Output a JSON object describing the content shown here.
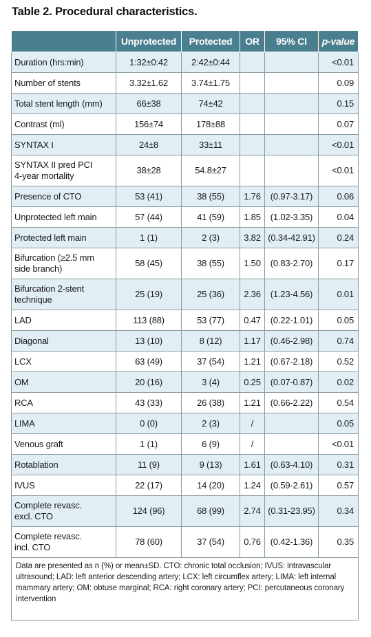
{
  "title": "Table 2. Procedural characteristics.",
  "headers": [
    "",
    "Unprotected",
    "Protected",
    "OR",
    "95% CI",
    "p-value"
  ],
  "rows": [
    {
      "label": [
        "Duration (hrs:min)"
      ],
      "unprotected": "1:32±0:42",
      "protected": "2:42±0:44",
      "or": "",
      "ci": "",
      "p": "<0.01"
    },
    {
      "label": [
        "Number of stents"
      ],
      "unprotected": "3.32±1.62",
      "protected": "3.74±1.75",
      "or": "",
      "ci": "",
      "p": "0.09"
    },
    {
      "label": [
        "Total stent length (mm)"
      ],
      "unprotected": "66±38",
      "protected": "74±42",
      "or": "",
      "ci": "",
      "p": "0.15"
    },
    {
      "label": [
        "Contrast (ml)"
      ],
      "unprotected": "156±74",
      "protected": "178±88",
      "or": "",
      "ci": "",
      "p": "0.07"
    },
    {
      "label": [
        "SYNTAX I"
      ],
      "unprotected": "24±8",
      "protected": "33±11",
      "or": "",
      "ci": "",
      "p": "<0.01"
    },
    {
      "label": [
        "SYNTAX II pred PCI",
        "4-year mortality"
      ],
      "unprotected": "38±28",
      "protected": "54.8±27",
      "or": "",
      "ci": "",
      "p": "<0.01"
    },
    {
      "label": [
        "Presence of CTO"
      ],
      "unprotected": "53 (41)",
      "protected": "38 (55)",
      "or": "1.76",
      "ci": "(0.97-3.17)",
      "p": "0.06"
    },
    {
      "label": [
        "Unprotected left main"
      ],
      "unprotected": "57 (44)",
      "protected": "41 (59)",
      "or": "1.85",
      "ci": "(1.02-3.35)",
      "p": "0.04"
    },
    {
      "label": [
        "Protected left main"
      ],
      "unprotected": "1 (1)",
      "protected": "2 (3)",
      "or": "3.82",
      "ci": "(0.34-42.91)",
      "p": "0.24"
    },
    {
      "label": [
        "Bifurcation (≥2.5 mm",
        "side branch)"
      ],
      "unprotected": "58 (45)",
      "protected": "38 (55)",
      "or": "1.50",
      "ci": "(0.83-2.70)",
      "p": "0.17"
    },
    {
      "label": [
        "Bifurcation 2-stent",
        "technique"
      ],
      "unprotected": "25 (19)",
      "protected": "25 (36)",
      "or": "2.36",
      "ci": "(1.23-4.56)",
      "p": "0.01"
    },
    {
      "label": [
        "LAD"
      ],
      "unprotected": "113 (88)",
      "protected": "53 (77)",
      "or": "0.47",
      "ci": "(0.22-1.01)",
      "p": "0.05"
    },
    {
      "label": [
        "Diagonal"
      ],
      "unprotected": "13 (10)",
      "protected": "8 (12)",
      "or": "1.17",
      "ci": "(0.46-2.98)",
      "p": "0.74"
    },
    {
      "label": [
        "LCX"
      ],
      "unprotected": "63 (49)",
      "protected": "37 (54)",
      "or": "1.21",
      "ci": "(0.67-2.18)",
      "p": "0.52"
    },
    {
      "label": [
        "OM"
      ],
      "unprotected": "20 (16)",
      "protected": "3 (4)",
      "or": "0.25",
      "ci": "(0.07-0.87)",
      "p": "0.02"
    },
    {
      "label": [
        "RCA"
      ],
      "unprotected": "43 (33)",
      "protected": "26 (38)",
      "or": "1.21",
      "ci": "(0.66-2.22)",
      "p": "0.54"
    },
    {
      "label": [
        "LIMA"
      ],
      "unprotected": "0 (0)",
      "protected": "2 (3)",
      "or": "/",
      "ci": "",
      "p": "0.05"
    },
    {
      "label": [
        "Venous graft"
      ],
      "unprotected": "1 (1)",
      "protected": "6 (9)",
      "or": "/",
      "ci": "",
      "p": "<0.01"
    },
    {
      "label": [
        "Rotablation"
      ],
      "unprotected": "11 (9)",
      "protected": "9 (13)",
      "or": "1.61",
      "ci": "(0.63-4.10)",
      "p": "0.31"
    },
    {
      "label": [
        "IVUS"
      ],
      "unprotected": "22 (17)",
      "protected": "14 (20)",
      "or": "1.24",
      "ci": "(0.59-2.61)",
      "p": "0.57"
    },
    {
      "label": [
        "Complete revasc.",
        "excl. CTO"
      ],
      "unprotected": "124 (96)",
      "protected": "68 (99)",
      "or": "2.74",
      "ci": "(0.31-23.95)",
      "p": "0.34"
    },
    {
      "label": [
        "Complete revasc.",
        "incl. CTO"
      ],
      "unprotected": "78 (60)",
      "protected": "37 (54)",
      "or": "0.76",
      "ci": "(0.42-1.36)",
      "p": "0.35"
    }
  ],
  "footnote": "Data are presented as n (%) or mean±SD. CTO: chronic total occlusion; IVUS: intravascular ultrasound; LAD: left anterior descending artery; LCX: left circumflex artery; LIMA: left internal mammary artery; OM: obtuse marginal; RCA: right coronary artery; PCI: percutaneous coronary intervention",
  "colors": {
    "header_bg": "#4a7f8f",
    "stripe_bg": "#e1eff4",
    "border": "#8a9aa0"
  }
}
